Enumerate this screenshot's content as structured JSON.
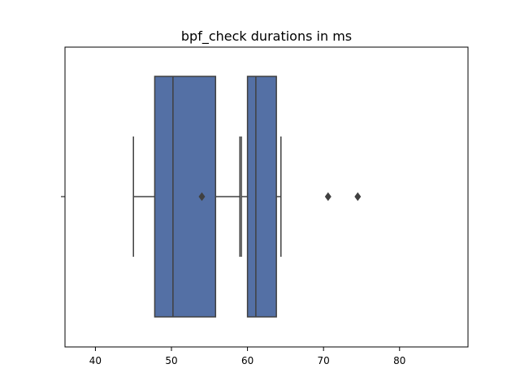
{
  "chart_data": {
    "type": "boxplot",
    "title": "bpf_check durations in ms",
    "xlabel": "",
    "ylabel": "",
    "xlim": [
      36,
      89
    ],
    "x_ticks": [
      40,
      50,
      60,
      70,
      80
    ],
    "grid": false,
    "legend": "none",
    "color": "#5470a5",
    "edge_color": "#404040",
    "boxes": [
      {
        "whisker_low": 45.0,
        "q1": 47.8,
        "median": 50.2,
        "q3": 55.8,
        "whisker_high": 59.0
      },
      {
        "whisker_low": 59.2,
        "q1": 60.0,
        "median": 61.1,
        "q3": 63.8,
        "whisker_high": 64.4
      }
    ],
    "outliers": [
      54.0,
      70.6,
      74.5
    ]
  }
}
